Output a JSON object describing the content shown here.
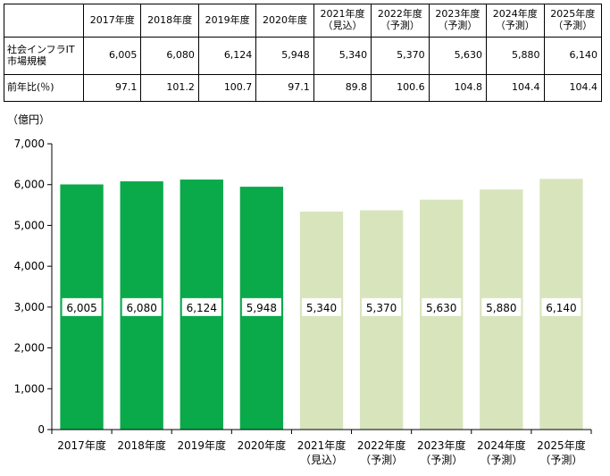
{
  "table": {
    "columns": [
      {
        "line1": "2017年度",
        "line2": ""
      },
      {
        "line1": "2018年度",
        "line2": ""
      },
      {
        "line1": "2019年度",
        "line2": ""
      },
      {
        "line1": "2020年度",
        "line2": ""
      },
      {
        "line1": "2021年度",
        "line2": "（見込）"
      },
      {
        "line1": "2022年度",
        "line2": "（予測）"
      },
      {
        "line1": "2023年度",
        "line2": "（予測）"
      },
      {
        "line1": "2024年度",
        "line2": "（予測）"
      },
      {
        "line1": "2025年度",
        "line2": "（予測）"
      }
    ],
    "rows": [
      {
        "label_line1": "社会インフラIT",
        "label_line2": "市場規模",
        "values": [
          "6,005",
          "6,080",
          "6,124",
          "5,948",
          "5,340",
          "5,370",
          "5,630",
          "5,880",
          "6,140"
        ]
      },
      {
        "label_line1": "前年比(％)",
        "label_line2": "",
        "values": [
          "97.1",
          "101.2",
          "100.7",
          "97.1",
          "89.8",
          "100.6",
          "104.8",
          "104.4",
          "104.4"
        ]
      }
    ]
  },
  "chart_data": {
    "type": "bar",
    "unit_label": "（億円）",
    "categories": [
      {
        "line1": "2017年度",
        "line2": ""
      },
      {
        "line1": "2018年度",
        "line2": ""
      },
      {
        "line1": "2019年度",
        "line2": ""
      },
      {
        "line1": "2020年度",
        "line2": ""
      },
      {
        "line1": "2021年度",
        "line2": "（見込）"
      },
      {
        "line1": "2022年度",
        "line2": "（予測）"
      },
      {
        "line1": "2023年度",
        "line2": "（予測）"
      },
      {
        "line1": "2024年度",
        "line2": "（予測）"
      },
      {
        "line1": "2025年度",
        "line2": "（予測）"
      }
    ],
    "values": [
      6005,
      6080,
      6124,
      5948,
      5340,
      5370,
      5630,
      5880,
      6140
    ],
    "value_labels": [
      "6,005",
      "6,080",
      "6,124",
      "5,948",
      "5,340",
      "5,370",
      "5,630",
      "5,880",
      "6,140"
    ],
    "status": [
      "actual",
      "actual",
      "actual",
      "actual",
      "forecast",
      "forecast",
      "forecast",
      "forecast",
      "forecast"
    ],
    "ylim": [
      0,
      7000
    ],
    "yticks": [
      0,
      1000,
      2000,
      3000,
      4000,
      5000,
      6000,
      7000
    ],
    "ytick_labels": [
      "0",
      "1,000",
      "2,000",
      "3,000",
      "4,000",
      "5,000",
      "6,000",
      "7,000"
    ],
    "colors": {
      "actual": "#0aaa4b",
      "forecast": "#d8e4bc"
    },
    "grid": false
  }
}
